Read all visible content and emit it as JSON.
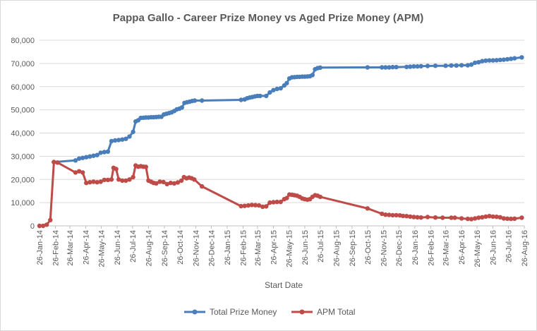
{
  "chart_data": {
    "type": "line",
    "title": "Pappa Gallo - Career Prize Money vs Aged Prize Money (APM)",
    "xlabel": "Start Date",
    "ylabel": "",
    "x_axis_type": "date",
    "xlim": [
      "2014-01-26",
      "2016-08-26"
    ],
    "ylim": [
      0,
      80000
    ],
    "y_ticks": [
      0,
      10000,
      20000,
      30000,
      40000,
      50000,
      60000,
      70000,
      80000
    ],
    "y_tick_labels": [
      "0",
      "10,000",
      "20,000",
      "30,000",
      "40,000",
      "50,000",
      "60,000",
      "70,000",
      "80,000"
    ],
    "x_ticks": [
      "2014-01-26",
      "2014-02-26",
      "2014-03-26",
      "2014-04-26",
      "2014-05-26",
      "2014-06-26",
      "2014-07-26",
      "2014-08-26",
      "2014-09-26",
      "2014-10-26",
      "2014-11-26",
      "2014-12-26",
      "2015-01-26",
      "2015-02-26",
      "2015-03-26",
      "2015-04-26",
      "2015-05-26",
      "2015-06-26",
      "2015-07-26",
      "2015-08-26",
      "2015-09-26",
      "2015-10-26",
      "2015-11-26",
      "2015-12-26",
      "2016-01-26",
      "2016-02-26",
      "2016-03-26",
      "2016-04-26",
      "2016-05-26",
      "2016-06-26",
      "2016-07-26",
      "2016-08-26"
    ],
    "x_tick_labels": [
      "26-Jan-14",
      "26-Feb-14",
      "26-Mar-14",
      "26-Apr-14",
      "26-May-14",
      "26-Jun-14",
      "26-Jul-14",
      "26-Aug-14",
      "26-Sep-14",
      "26-Oct-14",
      "26-Nov-14",
      "26-Dec-14",
      "26-Jan-15",
      "26-Feb-15",
      "26-Mar-15",
      "26-Apr-15",
      "26-May-15",
      "26-Jun-15",
      "26-Jul-15",
      "26-Aug-15",
      "26-Sep-15",
      "26-Oct-15",
      "26-Nov-15",
      "26-Dec-15",
      "26-Jan-16",
      "26-Feb-16",
      "26-Mar-16",
      "26-Apr-16",
      "26-May-16",
      "26-Jun-16",
      "26-Jul-16",
      "26-Aug-16"
    ],
    "grid": "horizontal",
    "legend_position": "bottom",
    "series": [
      {
        "name": "Total Prize Money",
        "color": "#4a7ebb",
        "points": [
          [
            "2014-02-23",
            27500
          ],
          [
            "2014-04-06",
            28200
          ],
          [
            "2014-04-13",
            29000
          ],
          [
            "2014-04-20",
            29300
          ],
          [
            "2014-04-27",
            29600
          ],
          [
            "2014-05-04",
            29900
          ],
          [
            "2014-05-11",
            30200
          ],
          [
            "2014-05-18",
            30500
          ],
          [
            "2014-05-25",
            31500
          ],
          [
            "2014-06-01",
            31800
          ],
          [
            "2014-06-08",
            32000
          ],
          [
            "2014-06-15",
            36500
          ],
          [
            "2014-06-22",
            36800
          ],
          [
            "2014-06-29",
            37000
          ],
          [
            "2014-07-06",
            37200
          ],
          [
            "2014-07-13",
            37500
          ],
          [
            "2014-07-20",
            38500
          ],
          [
            "2014-07-27",
            40500
          ],
          [
            "2014-08-01",
            45000
          ],
          [
            "2014-08-06",
            45500
          ],
          [
            "2014-08-11",
            46500
          ],
          [
            "2014-08-16",
            46600
          ],
          [
            "2014-08-21",
            46700
          ],
          [
            "2014-08-26",
            46700
          ],
          [
            "2014-08-31",
            46800
          ],
          [
            "2014-09-05",
            46800
          ],
          [
            "2014-09-10",
            46900
          ],
          [
            "2014-09-15",
            47000
          ],
          [
            "2014-09-20",
            47000
          ],
          [
            "2014-09-25",
            48000
          ],
          [
            "2014-09-30",
            48300
          ],
          [
            "2014-10-05",
            48600
          ],
          [
            "2014-10-10",
            48900
          ],
          [
            "2014-10-15",
            49500
          ],
          [
            "2014-10-20",
            50200
          ],
          [
            "2014-10-25",
            50500
          ],
          [
            "2014-10-30",
            51000
          ],
          [
            "2014-11-04",
            53000
          ],
          [
            "2014-11-09",
            53300
          ],
          [
            "2014-11-14",
            53500
          ],
          [
            "2014-11-19",
            53800
          ],
          [
            "2014-11-24",
            54000
          ],
          [
            "2014-12-08",
            54000
          ],
          [
            "2015-02-22",
            54300
          ],
          [
            "2015-03-01",
            54500
          ],
          [
            "2015-03-06",
            55000
          ],
          [
            "2015-03-11",
            55300
          ],
          [
            "2015-03-16",
            55500
          ],
          [
            "2015-03-21",
            55800
          ],
          [
            "2015-03-26",
            56000
          ],
          [
            "2015-03-31",
            56000
          ],
          [
            "2015-04-12",
            56000
          ],
          [
            "2015-04-19",
            57500
          ],
          [
            "2015-04-26",
            58500
          ],
          [
            "2015-05-03",
            59000
          ],
          [
            "2015-05-10",
            59300
          ],
          [
            "2015-05-17",
            60500
          ],
          [
            "2015-05-22",
            61500
          ],
          [
            "2015-05-27",
            63500
          ],
          [
            "2015-06-01",
            64000
          ],
          [
            "2015-06-06",
            64100
          ],
          [
            "2015-06-11",
            64200
          ],
          [
            "2015-06-16",
            64200
          ],
          [
            "2015-06-21",
            64300
          ],
          [
            "2015-06-26",
            64300
          ],
          [
            "2015-07-01",
            64400
          ],
          [
            "2015-07-06",
            64500
          ],
          [
            "2015-07-11",
            65000
          ],
          [
            "2015-07-16",
            67500
          ],
          [
            "2015-07-21",
            68000
          ],
          [
            "2015-07-26",
            68200
          ],
          [
            "2015-10-26",
            68300
          ],
          [
            "2015-11-23",
            68300
          ],
          [
            "2015-11-30",
            68300
          ],
          [
            "2015-12-07",
            68300
          ],
          [
            "2015-12-14",
            68400
          ],
          [
            "2015-12-21",
            68400
          ],
          [
            "2016-01-10",
            68500
          ],
          [
            "2016-01-17",
            68600
          ],
          [
            "2016-01-24",
            68700
          ],
          [
            "2016-01-31",
            68700
          ],
          [
            "2016-02-07",
            68800
          ],
          [
            "2016-02-20",
            68900
          ],
          [
            "2016-03-06",
            69000
          ],
          [
            "2016-03-26",
            69000
          ],
          [
            "2016-04-06",
            69100
          ],
          [
            "2016-04-16",
            69100
          ],
          [
            "2016-04-26",
            69200
          ],
          [
            "2016-05-08",
            69200
          ],
          [
            "2016-05-15",
            69500
          ],
          [
            "2016-05-22",
            70300
          ],
          [
            "2016-05-29",
            70500
          ],
          [
            "2016-06-05",
            71000
          ],
          [
            "2016-06-12",
            71200
          ],
          [
            "2016-06-19",
            71300
          ],
          [
            "2016-06-26",
            71300
          ],
          [
            "2016-07-03",
            71400
          ],
          [
            "2016-07-10",
            71500
          ],
          [
            "2016-07-17",
            71600
          ],
          [
            "2016-07-24",
            71800
          ],
          [
            "2016-07-31",
            72000
          ],
          [
            "2016-08-07",
            72200
          ],
          [
            "2016-08-21",
            72600
          ]
        ]
      },
      {
        "name": "APM Total",
        "color": "#be4b48",
        "points": [
          [
            "2014-01-26",
            0
          ],
          [
            "2014-02-02",
            0
          ],
          [
            "2014-02-09",
            500
          ],
          [
            "2014-02-16",
            2500
          ],
          [
            "2014-02-23",
            27500
          ],
          [
            "2014-03-02",
            27300
          ],
          [
            "2014-04-06",
            23000
          ],
          [
            "2014-04-13",
            23500
          ],
          [
            "2014-04-20",
            23000
          ],
          [
            "2014-04-27",
            18500
          ],
          [
            "2014-05-04",
            18800
          ],
          [
            "2014-05-11",
            19000
          ],
          [
            "2014-05-18",
            18800
          ],
          [
            "2014-05-25",
            19000
          ],
          [
            "2014-06-01",
            19800
          ],
          [
            "2014-06-08",
            19800
          ],
          [
            "2014-06-15",
            20000
          ],
          [
            "2014-06-19",
            25000
          ],
          [
            "2014-06-24",
            24500
          ],
          [
            "2014-06-29",
            20000
          ],
          [
            "2014-07-06",
            19500
          ],
          [
            "2014-07-13",
            19500
          ],
          [
            "2014-07-20",
            20000
          ],
          [
            "2014-07-27",
            21000
          ],
          [
            "2014-08-01",
            26000
          ],
          [
            "2014-08-06",
            25500
          ],
          [
            "2014-08-11",
            25700
          ],
          [
            "2014-08-16",
            25500
          ],
          [
            "2014-08-21",
            25400
          ],
          [
            "2014-08-26",
            19500
          ],
          [
            "2014-08-31",
            19000
          ],
          [
            "2014-09-05",
            18500
          ],
          [
            "2014-09-10",
            18300
          ],
          [
            "2014-09-17",
            19000
          ],
          [
            "2014-09-24",
            18900
          ],
          [
            "2014-10-01",
            18000
          ],
          [
            "2014-10-08",
            18500
          ],
          [
            "2014-10-15",
            18300
          ],
          [
            "2014-10-22",
            18700
          ],
          [
            "2014-10-29",
            19500
          ],
          [
            "2014-11-03",
            21000
          ],
          [
            "2014-11-08",
            20500
          ],
          [
            "2014-11-13",
            20800
          ],
          [
            "2014-11-18",
            20500
          ],
          [
            "2014-11-23",
            20000
          ],
          [
            "2014-12-08",
            17000
          ],
          [
            "2015-02-22",
            8500
          ],
          [
            "2015-03-01",
            8600
          ],
          [
            "2015-03-08",
            8800
          ],
          [
            "2015-03-15",
            9000
          ],
          [
            "2015-03-22",
            8900
          ],
          [
            "2015-03-29",
            8800
          ],
          [
            "2015-04-05",
            8200
          ],
          [
            "2015-04-12",
            8400
          ],
          [
            "2015-04-19",
            10000
          ],
          [
            "2015-04-26",
            10200
          ],
          [
            "2015-05-03",
            10300
          ],
          [
            "2015-05-10",
            10300
          ],
          [
            "2015-05-17",
            11500
          ],
          [
            "2015-05-22",
            12000
          ],
          [
            "2015-05-27",
            13500
          ],
          [
            "2015-06-01",
            13400
          ],
          [
            "2015-06-06",
            13200
          ],
          [
            "2015-06-11",
            13000
          ],
          [
            "2015-06-16",
            12500
          ],
          [
            "2015-06-21",
            11800
          ],
          [
            "2015-06-26",
            11500
          ],
          [
            "2015-07-01",
            11300
          ],
          [
            "2015-07-06",
            11500
          ],
          [
            "2015-07-11",
            12500
          ],
          [
            "2015-07-16",
            13200
          ],
          [
            "2015-07-21",
            13000
          ],
          [
            "2015-07-26",
            12500
          ],
          [
            "2015-10-26",
            7500
          ],
          [
            "2015-11-23",
            5200
          ],
          [
            "2015-11-30",
            4800
          ],
          [
            "2015-12-07",
            4700
          ],
          [
            "2015-12-14",
            4600
          ],
          [
            "2015-12-21",
            4600
          ],
          [
            "2015-12-28",
            4500
          ],
          [
            "2016-01-03",
            4300
          ],
          [
            "2016-01-10",
            4200
          ],
          [
            "2016-01-17",
            4000
          ],
          [
            "2016-01-24",
            3800
          ],
          [
            "2016-01-31",
            3700
          ],
          [
            "2016-02-07",
            3600
          ],
          [
            "2016-02-20",
            3800
          ],
          [
            "2016-03-06",
            3600
          ],
          [
            "2016-03-20",
            3500
          ],
          [
            "2016-04-06",
            3500
          ],
          [
            "2016-04-13",
            3500
          ],
          [
            "2016-04-26",
            3200
          ],
          [
            "2016-05-08",
            3000
          ],
          [
            "2016-05-15",
            2900
          ],
          [
            "2016-05-22",
            3200
          ],
          [
            "2016-05-29",
            3500
          ],
          [
            "2016-06-05",
            3700
          ],
          [
            "2016-06-12",
            4000
          ],
          [
            "2016-06-19",
            4200
          ],
          [
            "2016-06-26",
            4000
          ],
          [
            "2016-07-03",
            3900
          ],
          [
            "2016-07-10",
            3700
          ],
          [
            "2016-07-17",
            3200
          ],
          [
            "2016-07-24",
            3100
          ],
          [
            "2016-07-31",
            3000
          ],
          [
            "2016-08-07",
            3100
          ],
          [
            "2016-08-21",
            3500
          ]
        ]
      }
    ]
  }
}
